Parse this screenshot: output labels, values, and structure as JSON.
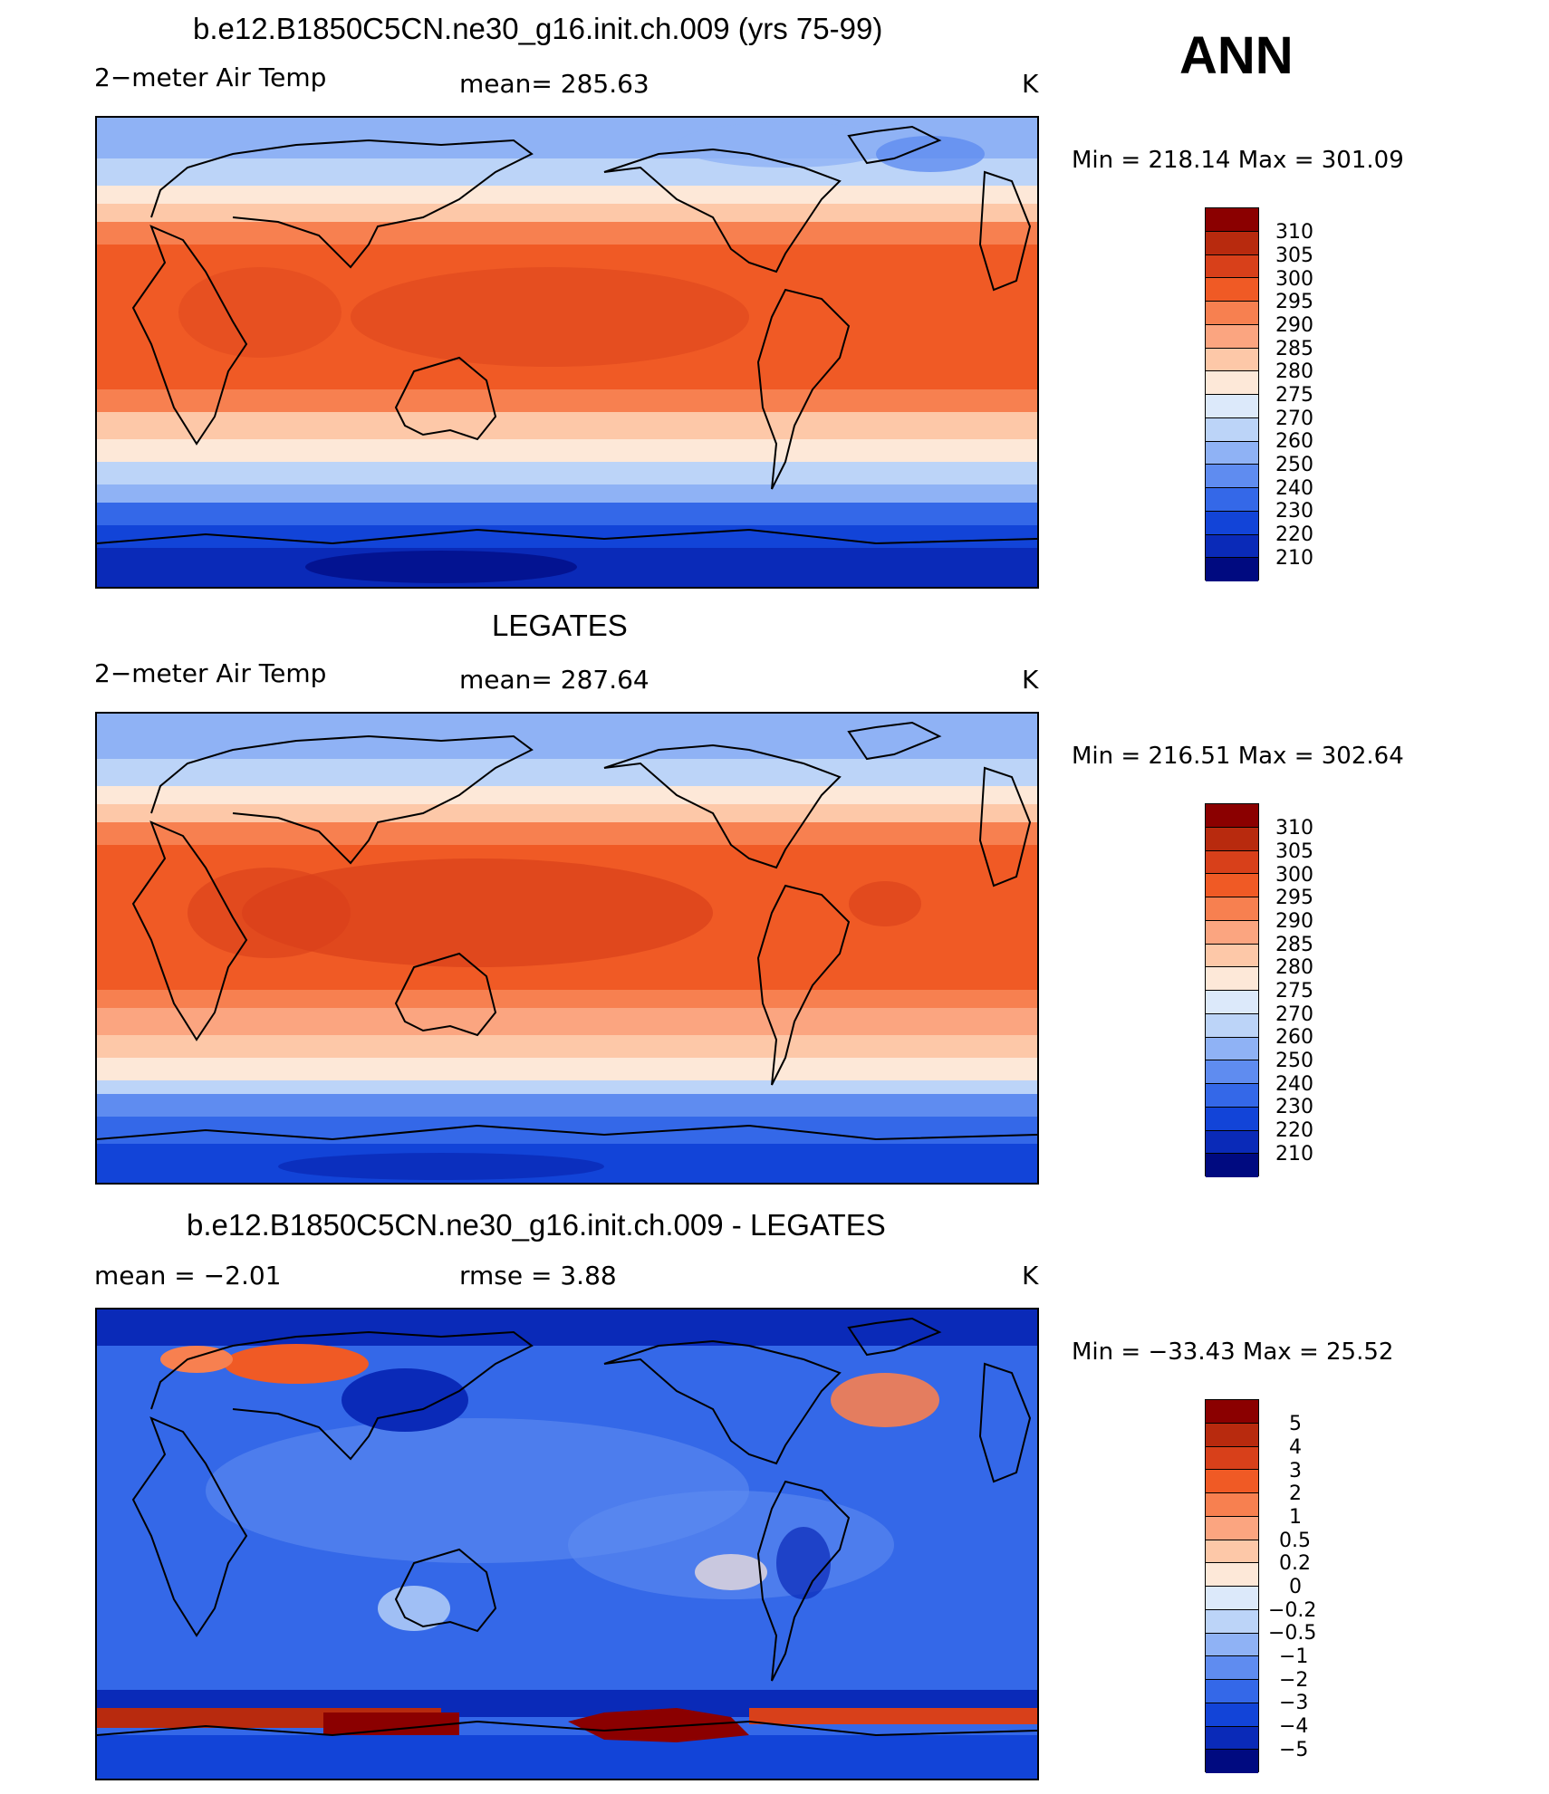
{
  "season": "ANN",
  "panels": [
    {
      "title": "b.e12.B1850C5CN.ne30_g16.init.ch.009 (yrs 75-99)",
      "left_label": "2−meter Air Temp",
      "center_label": "mean=  285.63",
      "units": "K",
      "minmax": "Min  =  218.14  Max  =  301.09",
      "colorbar_labels": [
        "310",
        "305",
        "300",
        "295",
        "290",
        "285",
        "280",
        "275",
        "270",
        "260",
        "250",
        "240",
        "230",
        "220",
        "210"
      ]
    },
    {
      "title": "LEGATES",
      "left_label": "2−meter Air Temp",
      "center_label": "mean=  287.64",
      "units": "K",
      "minmax": "Min  =  216.51  Max  =  302.64",
      "colorbar_labels": [
        "310",
        "305",
        "300",
        "295",
        "290",
        "285",
        "280",
        "275",
        "270",
        "260",
        "250",
        "240",
        "230",
        "220",
        "210"
      ]
    },
    {
      "title": "b.e12.B1850C5CN.ne30_g16.init.ch.009 - LEGATES",
      "left_label": "mean  =    −2.01",
      "center_label": "rmse  =     3.88",
      "units": "K",
      "minmax": "Min  =  −33.43  Max  =    25.52",
      "colorbar_labels": [
        "5",
        "4",
        "3",
        "2",
        "1",
        "0.5",
        "0.2",
        "0",
        "−0.2",
        "−0.5",
        "−1",
        "−2",
        "−3",
        "−4",
        "−5"
      ]
    }
  ],
  "colors": {
    "colorbar": [
      "#8b0000",
      "#b82a0e",
      "#d8401a",
      "#f05a25",
      "#f78050",
      "#fba580",
      "#fdc8a8",
      "#fde8d8",
      "#dce9fa",
      "#bcd4f8",
      "#8fb2f5",
      "#5f8cf0",
      "#3468e8",
      "#1244d8",
      "#0a2ab8",
      "#000a80"
    ]
  }
}
